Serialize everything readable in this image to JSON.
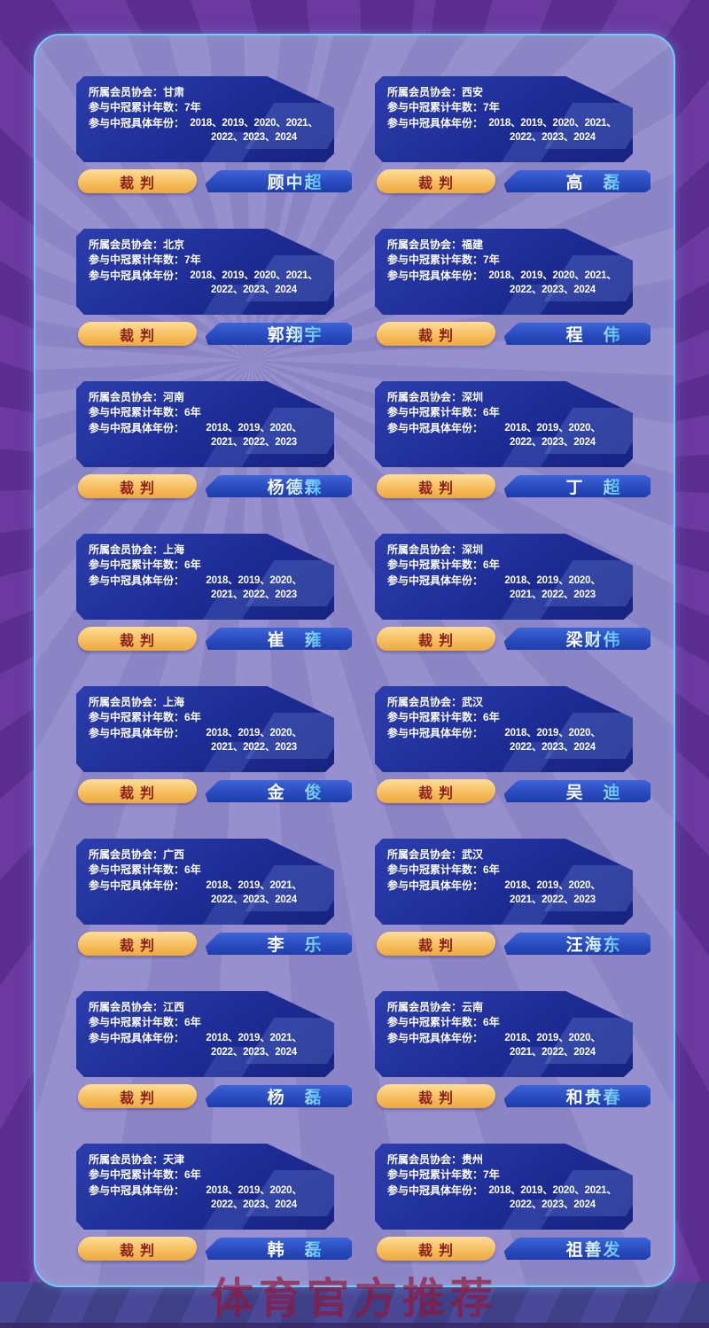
{
  "page": {
    "watermark": "体育官方推荐"
  },
  "labels": {
    "assoc": "所属会员协会：",
    "years_count": "参与中冠累计年数：",
    "years_list": "参与中冠具体年份：",
    "badge": "裁判"
  },
  "colors": {
    "background_purple": "#5c2d90",
    "panel_lavender": "#8c85c5",
    "panel_border": "#76cbf4",
    "card_blue": "#1d2c94",
    "name_bar_blue": "#2a4cc0",
    "badge_gold": "#f5bc5b",
    "badge_text_red": "#8f231c",
    "name_cyan": "#54bdf4",
    "watermark_red": "#941538"
  },
  "cards": [
    {
      "assoc": "甘肃",
      "years_count": "7年",
      "years": "2018、2019、2020、2021、\n2022、2023、2024",
      "name": "顾中超"
    },
    {
      "assoc": "西安",
      "years_count": "7年",
      "years": "2018、2019、2020、2021、\n2022、2023、2024",
      "name": "高　磊"
    },
    {
      "assoc": "北京",
      "years_count": "7年",
      "years": "2018、2019、2020、2021、\n2022、2023、2024",
      "name": "郭翔宇"
    },
    {
      "assoc": "福建",
      "years_count": "7年",
      "years": "2018、2019、2020、2021、\n2022、2023、2024",
      "name": "程　伟"
    },
    {
      "assoc": "河南",
      "years_count": "6年",
      "years": "2018、2019、2020、\n2021、2022、2023",
      "name": "杨德霖"
    },
    {
      "assoc": "深圳",
      "years_count": "6年",
      "years": "2018、2019、2020、\n2022、2023、2024",
      "name": "丁　超"
    },
    {
      "assoc": "上海",
      "years_count": "6年",
      "years": "2018、2019、2020、\n2021、2022、2023",
      "name": "崔　雍"
    },
    {
      "assoc": "深圳",
      "years_count": "6年",
      "years": "2018、2019、2020、\n2021、2022、2023",
      "name": "梁财伟"
    },
    {
      "assoc": "上海",
      "years_count": "6年",
      "years": "2018、2019、2020、\n2021、2022、2023",
      "name": "金　俊"
    },
    {
      "assoc": "武汉",
      "years_count": "6年",
      "years": "2018、2019、2020、\n2022、2023、2024",
      "name": "吴　迪"
    },
    {
      "assoc": "广西",
      "years_count": "6年",
      "years": "2018、2019、2021、\n2022、2023、2024",
      "name": "李　乐"
    },
    {
      "assoc": "武汉",
      "years_count": "6年",
      "years": "2018、2019、2020、\n2021、2022、2023",
      "name": "汪海东"
    },
    {
      "assoc": "江西",
      "years_count": "6年",
      "years": "2018、2019、2021、\n2022、2023、2024",
      "name": "杨　磊"
    },
    {
      "assoc": "云南",
      "years_count": "6年",
      "years": "2018、2019、2020、\n2021、2022、2024",
      "name": "和贵春"
    },
    {
      "assoc": "天津",
      "years_count": "6年",
      "years": "2018、2019、2020、\n2022、2023、2024",
      "name": "韩　磊"
    },
    {
      "assoc": "贵州",
      "years_count": "7年",
      "years": "2018、2019、2020、2021、\n2022、2023、2024",
      "name": "祖善发"
    }
  ]
}
